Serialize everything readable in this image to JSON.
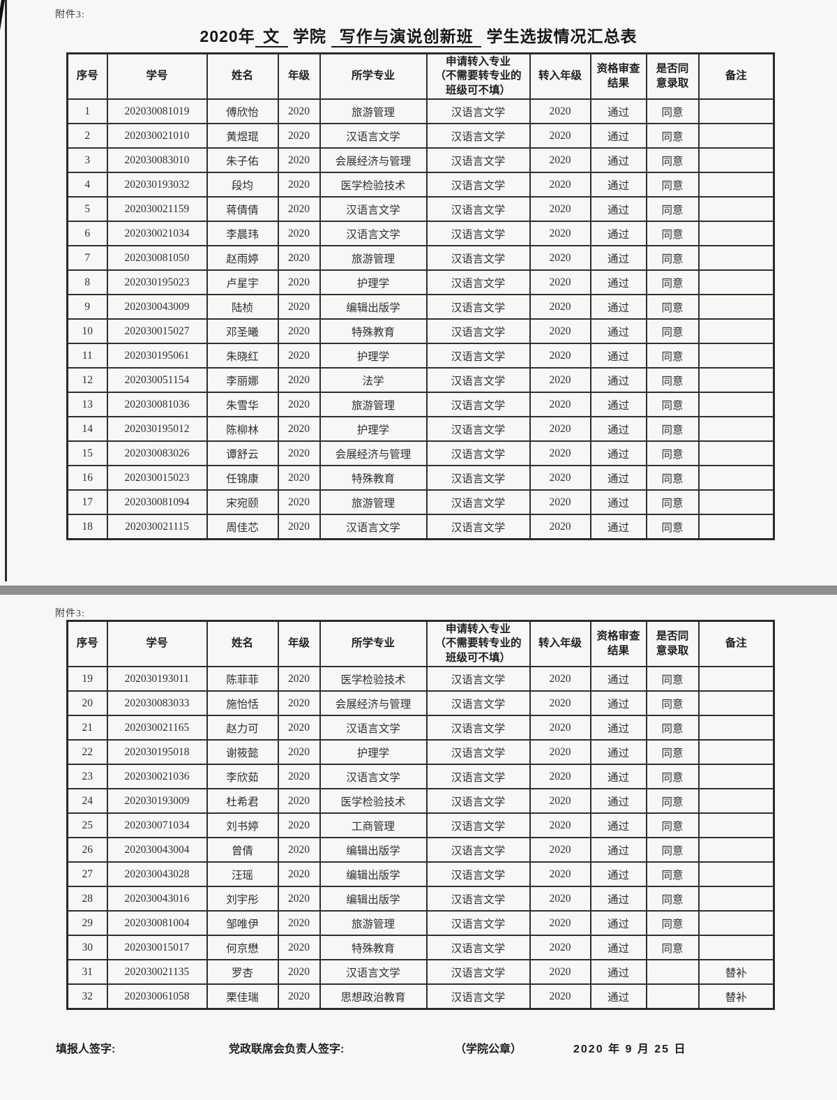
{
  "attachment_label": "附件3:",
  "title": {
    "full_text": "2020年 文 学院 写作与演说创新班 学生选拔情况汇总表",
    "parts": [
      {
        "text": "2020年",
        "underline": false
      },
      {
        "text": " 文 ",
        "underline": true
      },
      {
        "text": " 学院 ",
        "underline": false
      },
      {
        "text": " 写作与演说创新班 ",
        "underline": true
      },
      {
        "text": " 学生选拔情况汇总表",
        "underline": false
      }
    ]
  },
  "table": {
    "columns": [
      {
        "key": "no",
        "label": "序号"
      },
      {
        "key": "student_id",
        "label": "学号"
      },
      {
        "key": "name",
        "label": "姓名"
      },
      {
        "key": "grade",
        "label": "年级"
      },
      {
        "key": "major",
        "label": "所学专业"
      },
      {
        "key": "transfer_major",
        "label": "申请转入专业\n（不需要转专业的\n班级可不填）"
      },
      {
        "key": "transfer_grade",
        "label": "转入年级"
      },
      {
        "key": "review",
        "label": "资格审查\n结果"
      },
      {
        "key": "admit",
        "label": "是否同\n意录取"
      },
      {
        "key": "remark",
        "label": "备注"
      }
    ]
  },
  "rows": [
    {
      "no": "1",
      "student_id": "202030081019",
      "name": "傅欣怡",
      "grade": "2020",
      "major": "旅游管理",
      "transfer_major": "汉语言文学",
      "transfer_grade": "2020",
      "review": "通过",
      "admit": "同意",
      "remark": ""
    },
    {
      "no": "2",
      "student_id": "202030021010",
      "name": "黄煜琨",
      "grade": "2020",
      "major": "汉语言文学",
      "transfer_major": "汉语言文学",
      "transfer_grade": "2020",
      "review": "通过",
      "admit": "同意",
      "remark": ""
    },
    {
      "no": "3",
      "student_id": "202030083010",
      "name": "朱子佑",
      "grade": "2020",
      "major": "会展经济与管理",
      "transfer_major": "汉语言文学",
      "transfer_grade": "2020",
      "review": "通过",
      "admit": "同意",
      "remark": ""
    },
    {
      "no": "4",
      "student_id": "202030193032",
      "name": "段均",
      "grade": "2020",
      "major": "医学检验技术",
      "transfer_major": "汉语言文学",
      "transfer_grade": "2020",
      "review": "通过",
      "admit": "同意",
      "remark": ""
    },
    {
      "no": "5",
      "student_id": "202030021159",
      "name": "蒋倩倩",
      "grade": "2020",
      "major": "汉语言文学",
      "transfer_major": "汉语言文学",
      "transfer_grade": "2020",
      "review": "通过",
      "admit": "同意",
      "remark": ""
    },
    {
      "no": "6",
      "student_id": "202030021034",
      "name": "李晨玮",
      "grade": "2020",
      "major": "汉语言文学",
      "transfer_major": "汉语言文学",
      "transfer_grade": "2020",
      "review": "通过",
      "admit": "同意",
      "remark": ""
    },
    {
      "no": "7",
      "student_id": "202030081050",
      "name": "赵雨婷",
      "grade": "2020",
      "major": "旅游管理",
      "transfer_major": "汉语言文学",
      "transfer_grade": "2020",
      "review": "通过",
      "admit": "同意",
      "remark": ""
    },
    {
      "no": "8",
      "student_id": "202030195023",
      "name": "卢星宇",
      "grade": "2020",
      "major": "护理学",
      "transfer_major": "汉语言文学",
      "transfer_grade": "2020",
      "review": "通过",
      "admit": "同意",
      "remark": ""
    },
    {
      "no": "9",
      "student_id": "202030043009",
      "name": "陆桢",
      "grade": "2020",
      "major": "编辑出版学",
      "transfer_major": "汉语言文学",
      "transfer_grade": "2020",
      "review": "通过",
      "admit": "同意",
      "remark": ""
    },
    {
      "no": "10",
      "student_id": "202030015027",
      "name": "邓圣曦",
      "grade": "2020",
      "major": "特殊教育",
      "transfer_major": "汉语言文学",
      "transfer_grade": "2020",
      "review": "通过",
      "admit": "同意",
      "remark": ""
    },
    {
      "no": "11",
      "student_id": "202030195061",
      "name": "朱晓红",
      "grade": "2020",
      "major": "护理学",
      "transfer_major": "汉语言文学",
      "transfer_grade": "2020",
      "review": "通过",
      "admit": "同意",
      "remark": ""
    },
    {
      "no": "12",
      "student_id": "202030051154",
      "name": "李丽娜",
      "grade": "2020",
      "major": "法学",
      "transfer_major": "汉语言文学",
      "transfer_grade": "2020",
      "review": "通过",
      "admit": "同意",
      "remark": ""
    },
    {
      "no": "13",
      "student_id": "202030081036",
      "name": "朱雪华",
      "grade": "2020",
      "major": "旅游管理",
      "transfer_major": "汉语言文学",
      "transfer_grade": "2020",
      "review": "通过",
      "admit": "同意",
      "remark": ""
    },
    {
      "no": "14",
      "student_id": "202030195012",
      "name": "陈柳林",
      "grade": "2020",
      "major": "护理学",
      "transfer_major": "汉语言文学",
      "transfer_grade": "2020",
      "review": "通过",
      "admit": "同意",
      "remark": ""
    },
    {
      "no": "15",
      "student_id": "202030083026",
      "name": "谭舒云",
      "grade": "2020",
      "major": "会展经济与管理",
      "transfer_major": "汉语言文学",
      "transfer_grade": "2020",
      "review": "通过",
      "admit": "同意",
      "remark": ""
    },
    {
      "no": "16",
      "student_id": "202030015023",
      "name": "任锦康",
      "grade": "2020",
      "major": "特殊教育",
      "transfer_major": "汉语言文学",
      "transfer_grade": "2020",
      "review": "通过",
      "admit": "同意",
      "remark": ""
    },
    {
      "no": "17",
      "student_id": "202030081094",
      "name": "宋宛颐",
      "grade": "2020",
      "major": "旅游管理",
      "transfer_major": "汉语言文学",
      "transfer_grade": "2020",
      "review": "通过",
      "admit": "同意",
      "remark": ""
    },
    {
      "no": "18",
      "student_id": "202030021115",
      "name": "周佳芯",
      "grade": "2020",
      "major": "汉语言文学",
      "transfer_major": "汉语言文学",
      "transfer_grade": "2020",
      "review": "通过",
      "admit": "同意",
      "remark": ""
    },
    {
      "no": "19",
      "student_id": "202030193011",
      "name": "陈菲菲",
      "grade": "2020",
      "major": "医学检验技术",
      "transfer_major": "汉语言文学",
      "transfer_grade": "2020",
      "review": "通过",
      "admit": "同意",
      "remark": ""
    },
    {
      "no": "20",
      "student_id": "202030083033",
      "name": "施怡恬",
      "grade": "2020",
      "major": "会展经济与管理",
      "transfer_major": "汉语言文学",
      "transfer_grade": "2020",
      "review": "通过",
      "admit": "同意",
      "remark": ""
    },
    {
      "no": "21",
      "student_id": "202030021165",
      "name": "赵力可",
      "grade": "2020",
      "major": "汉语言文学",
      "transfer_major": "汉语言文学",
      "transfer_grade": "2020",
      "review": "通过",
      "admit": "同意",
      "remark": ""
    },
    {
      "no": "22",
      "student_id": "202030195018",
      "name": "谢筱懿",
      "grade": "2020",
      "major": "护理学",
      "transfer_major": "汉语言文学",
      "transfer_grade": "2020",
      "review": "通过",
      "admit": "同意",
      "remark": ""
    },
    {
      "no": "23",
      "student_id": "202030021036",
      "name": "李欣茹",
      "grade": "2020",
      "major": "汉语言文学",
      "transfer_major": "汉语言文学",
      "transfer_grade": "2020",
      "review": "通过",
      "admit": "同意",
      "remark": ""
    },
    {
      "no": "24",
      "student_id": "202030193009",
      "name": "杜希君",
      "grade": "2020",
      "major": "医学检验技术",
      "transfer_major": "汉语言文学",
      "transfer_grade": "2020",
      "review": "通过",
      "admit": "同意",
      "remark": ""
    },
    {
      "no": "25",
      "student_id": "202030071034",
      "name": "刘书婷",
      "grade": "2020",
      "major": "工商管理",
      "transfer_major": "汉语言文学",
      "transfer_grade": "2020",
      "review": "通过",
      "admit": "同意",
      "remark": ""
    },
    {
      "no": "26",
      "student_id": "202030043004",
      "name": "曾倩",
      "grade": "2020",
      "major": "编辑出版学",
      "transfer_major": "汉语言文学",
      "transfer_grade": "2020",
      "review": "通过",
      "admit": "同意",
      "remark": ""
    },
    {
      "no": "27",
      "student_id": "202030043028",
      "name": "汪瑶",
      "grade": "2020",
      "major": "编辑出版学",
      "transfer_major": "汉语言文学",
      "transfer_grade": "2020",
      "review": "通过",
      "admit": "同意",
      "remark": ""
    },
    {
      "no": "28",
      "student_id": "202030043016",
      "name": "刘宇彤",
      "grade": "2020",
      "major": "编辑出版学",
      "transfer_major": "汉语言文学",
      "transfer_grade": "2020",
      "review": "通过",
      "admit": "同意",
      "remark": ""
    },
    {
      "no": "29",
      "student_id": "202030081004",
      "name": "邹唯伊",
      "grade": "2020",
      "major": "旅游管理",
      "transfer_major": "汉语言文学",
      "transfer_grade": "2020",
      "review": "通过",
      "admit": "同意",
      "remark": ""
    },
    {
      "no": "30",
      "student_id": "202030015017",
      "name": "何京懋",
      "grade": "2020",
      "major": "特殊教育",
      "transfer_major": "汉语言文学",
      "transfer_grade": "2020",
      "review": "通过",
      "admit": "同意",
      "remark": ""
    },
    {
      "no": "31",
      "student_id": "202030021135",
      "name": "罗杏",
      "grade": "2020",
      "major": "汉语言文学",
      "transfer_major": "汉语言文学",
      "transfer_grade": "2020",
      "review": "通过",
      "admit": "",
      "remark": "替补"
    },
    {
      "no": "32",
      "student_id": "202030061058",
      "name": "栗佳瑞",
      "grade": "2020",
      "major": "思想政治教育",
      "transfer_major": "汉语言文学",
      "transfer_grade": "2020",
      "review": "通过",
      "admit": "",
      "remark": "替补"
    }
  ],
  "footer": {
    "filler_label": "填报人签字:",
    "leader_label": "党政联席会负责人签字:",
    "seal_label": "（学院公章）",
    "date": "2020 年 9 月 25 日"
  },
  "colors": {
    "ink": "#262626",
    "page_background": "#f7f7f5",
    "divider_gray": "#8f8f8f"
  }
}
